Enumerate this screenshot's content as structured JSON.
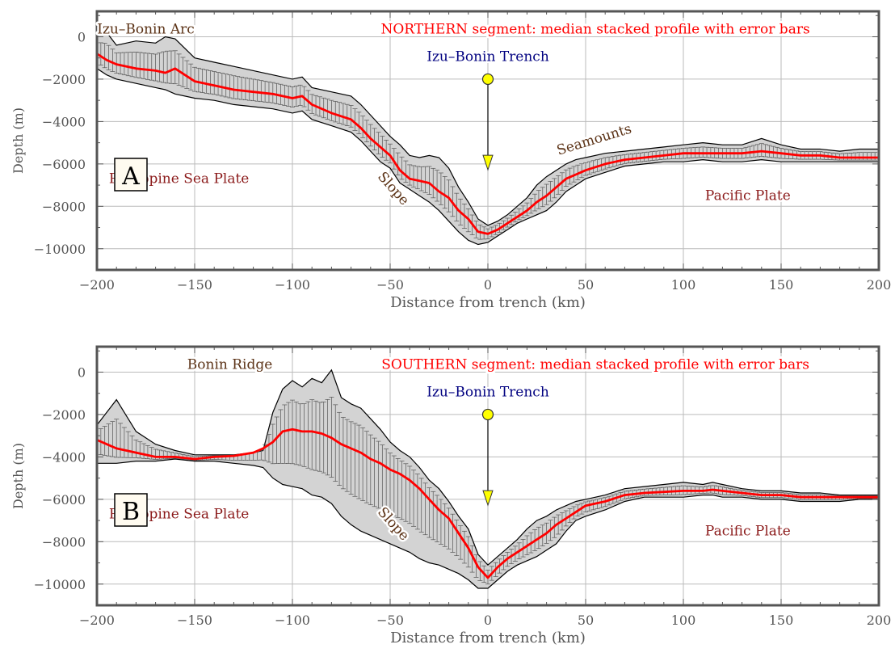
{
  "chart_data": [
    {
      "type": "line",
      "panel_label": "A",
      "title": "NORTHERN segment: median stacked profile with error bars",
      "xlabel": "Distance from trench (km)",
      "ylabel": "Depth (m)",
      "xlim": [
        -200,
        200
      ],
      "ylim": [
        -11000,
        1200
      ],
      "xticks": [
        -200,
        -150,
        -100,
        -50,
        0,
        50,
        100,
        150,
        200
      ],
      "yticks": [
        0,
        -2000,
        -4000,
        -6000,
        -8000,
        -10000
      ],
      "tick_labels_x": [
        "−200",
        "−150",
        "−100",
        "−50",
        "0",
        "50",
        "100",
        "150",
        "200"
      ],
      "tick_labels_y": [
        "0",
        "−2000",
        "−4000",
        "−6000",
        "−8000",
        "−10000"
      ],
      "grid": true,
      "series": [
        {
          "name": "median",
          "color": "#ff0000",
          "x": [
            -200,
            -195,
            -190,
            -180,
            -170,
            -165,
            -160,
            -150,
            -140,
            -130,
            -120,
            -110,
            -100,
            -95,
            -90,
            -80,
            -70,
            -65,
            -60,
            -55,
            -50,
            -45,
            -40,
            -35,
            -30,
            -25,
            -20,
            -15,
            -10,
            -5,
            0,
            5,
            10,
            15,
            20,
            25,
            30,
            35,
            40,
            45,
            50,
            60,
            70,
            80,
            90,
            100,
            110,
            120,
            130,
            140,
            150,
            160,
            170,
            180,
            190,
            200
          ],
          "y": [
            -800,
            -1100,
            -1300,
            -1500,
            -1600,
            -1700,
            -1500,
            -2100,
            -2300,
            -2500,
            -2600,
            -2700,
            -2900,
            -2800,
            -3200,
            -3600,
            -3900,
            -4300,
            -4800,
            -5200,
            -5600,
            -6300,
            -6700,
            -6800,
            -6900,
            -7300,
            -7600,
            -8200,
            -8600,
            -9200,
            -9300,
            -9100,
            -8800,
            -8500,
            -8200,
            -7800,
            -7500,
            -7100,
            -6700,
            -6500,
            -6300,
            -6000,
            -5800,
            -5700,
            -5600,
            -5500,
            -5500,
            -5500,
            -5500,
            -5400,
            -5500,
            -5600,
            -5600,
            -5700,
            -5700,
            -5700
          ]
        }
      ],
      "envelope": {
        "color": "#d3d3d3",
        "x": [
          -200,
          -195,
          -190,
          -180,
          -170,
          -165,
          -160,
          -150,
          -140,
          -130,
          -120,
          -110,
          -100,
          -95,
          -90,
          -80,
          -70,
          -65,
          -60,
          -55,
          -50,
          -45,
          -40,
          -35,
          -30,
          -25,
          -20,
          -15,
          -10,
          -5,
          0,
          5,
          10,
          15,
          20,
          25,
          30,
          35,
          40,
          45,
          50,
          60,
          70,
          80,
          90,
          100,
          110,
          120,
          130,
          140,
          150,
          160,
          170,
          180,
          190,
          200
        ],
        "upper": [
          100,
          200,
          -400,
          -200,
          -300,
          0,
          -100,
          -1000,
          -1200,
          -1400,
          -1600,
          -1800,
          -2000,
          -1900,
          -2400,
          -2600,
          -2800,
          -3200,
          -3700,
          -4200,
          -4700,
          -5100,
          -5600,
          -5700,
          -5600,
          -5700,
          -6200,
          -7100,
          -7800,
          -8600,
          -8900,
          -8700,
          -8400,
          -8000,
          -7600,
          -7000,
          -6600,
          -6300,
          -6000,
          -5800,
          -5700,
          -5500,
          -5400,
          -5300,
          -5200,
          -5100,
          -5000,
          -5100,
          -5100,
          -4800,
          -5100,
          -5300,
          -5300,
          -5400,
          -5300,
          -5300
        ],
        "lower": [
          -1500,
          -1800,
          -2000,
          -2200,
          -2400,
          -2500,
          -2700,
          -2900,
          -3000,
          -3200,
          -3300,
          -3400,
          -3600,
          -3500,
          -3900,
          -4200,
          -4500,
          -4900,
          -5400,
          -5900,
          -6200,
          -6900,
          -7200,
          -7500,
          -7800,
          -8200,
          -8700,
          -9200,
          -9600,
          -9800,
          -9700,
          -9400,
          -9100,
          -8800,
          -8600,
          -8400,
          -8200,
          -7800,
          -7300,
          -7000,
          -6700,
          -6400,
          -6100,
          -6000,
          -5900,
          -5900,
          -5800,
          -5900,
          -5900,
          -5800,
          -5900,
          -5900,
          -5900,
          -5900,
          -5900,
          -5900
        ]
      },
      "annotations": [
        {
          "text": "Izu–Bonin Arc",
          "x": -175,
          "y": 150,
          "color": "#5c3317"
        },
        {
          "text": "Izu–Bonin Trench",
          "x": 0,
          "y": -1150,
          "color": "#000080"
        },
        {
          "text": "Philippine Sea Plate",
          "x": -158,
          "y": -6900,
          "color": "#8b1a1a"
        },
        {
          "text": "Slope",
          "x": -50,
          "y": -7300,
          "color": "#5c3317",
          "rotate": 48
        },
        {
          "text": "Seamounts",
          "x": 55,
          "y": -5050,
          "color": "#5c3317",
          "rotate": -17
        },
        {
          "text": "Pacific Plate",
          "x": 133,
          "y": -7700,
          "color": "#8b1a1a"
        }
      ],
      "marker": {
        "x": 0,
        "y_top": -2000,
        "y_bottom": -6200,
        "top_color": "#ffff00",
        "arrow_color": "#ffff00"
      }
    },
    {
      "type": "line",
      "panel_label": "B",
      "title": "SOUTHERN segment: median stacked profile with error bars",
      "xlabel": "Distance from trench (km)",
      "ylabel": "Depth (m)",
      "xlim": [
        -200,
        200
      ],
      "ylim": [
        -11000,
        1200
      ],
      "xticks": [
        -200,
        -150,
        -100,
        -50,
        0,
        50,
        100,
        150,
        200
      ],
      "yticks": [
        0,
        -2000,
        -4000,
        -6000,
        -8000,
        -10000
      ],
      "tick_labels_x": [
        "−200",
        "−150",
        "−100",
        "−50",
        "0",
        "50",
        "100",
        "150",
        "200"
      ],
      "tick_labels_y": [
        "0",
        "−2000",
        "−4000",
        "−6000",
        "−8000",
        "−10000"
      ],
      "grid": true,
      "series": [
        {
          "name": "median",
          "color": "#ff0000",
          "x": [
            -200,
            -190,
            -180,
            -170,
            -160,
            -150,
            -140,
            -130,
            -120,
            -115,
            -110,
            -105,
            -100,
            -95,
            -90,
            -85,
            -80,
            -75,
            -70,
            -65,
            -60,
            -55,
            -50,
            -45,
            -40,
            -35,
            -30,
            -25,
            -20,
            -15,
            -10,
            -5,
            0,
            5,
            10,
            15,
            20,
            25,
            30,
            35,
            40,
            45,
            50,
            60,
            70,
            80,
            90,
            100,
            110,
            115,
            120,
            130,
            140,
            150,
            160,
            170,
            180,
            190,
            200
          ],
          "y": [
            -3200,
            -3600,
            -3800,
            -4000,
            -4000,
            -4100,
            -4000,
            -3950,
            -3800,
            -3600,
            -3300,
            -2800,
            -2700,
            -2800,
            -2800,
            -2900,
            -3100,
            -3400,
            -3600,
            -3800,
            -4100,
            -4300,
            -4600,
            -4800,
            -5100,
            -5500,
            -6000,
            -6500,
            -6900,
            -7600,
            -8300,
            -9200,
            -9700,
            -9200,
            -8800,
            -8500,
            -8200,
            -7900,
            -7600,
            -7200,
            -6900,
            -6600,
            -6300,
            -6100,
            -5800,
            -5700,
            -5650,
            -5600,
            -5600,
            -5550,
            -5600,
            -5700,
            -5800,
            -5800,
            -5900,
            -5900,
            -5900,
            -5900,
            -5900
          ]
        }
      ],
      "envelope": {
        "color": "#d3d3d3",
        "x": [
          -200,
          -190,
          -180,
          -170,
          -160,
          -150,
          -140,
          -130,
          -120,
          -115,
          -110,
          -105,
          -100,
          -95,
          -90,
          -85,
          -80,
          -75,
          -70,
          -65,
          -60,
          -55,
          -50,
          -45,
          -40,
          -35,
          -30,
          -25,
          -20,
          -15,
          -10,
          -5,
          0,
          5,
          10,
          15,
          20,
          25,
          30,
          35,
          40,
          45,
          50,
          60,
          70,
          80,
          90,
          100,
          110,
          115,
          120,
          130,
          140,
          150,
          160,
          170,
          180,
          190,
          200
        ],
        "upper": [
          -2500,
          -1300,
          -2800,
          -3400,
          -3700,
          -3900,
          -3900,
          -3900,
          -3800,
          -3700,
          -1900,
          -800,
          -400,
          -700,
          -300,
          -500,
          100,
          -1200,
          -1500,
          -1700,
          -2200,
          -2700,
          -3300,
          -3700,
          -4000,
          -4500,
          -5100,
          -5500,
          -6100,
          -6800,
          -7400,
          -8600,
          -9100,
          -8700,
          -8300,
          -7900,
          -7400,
          -7000,
          -6800,
          -6500,
          -6300,
          -6100,
          -6000,
          -5800,
          -5500,
          -5400,
          -5300,
          -5200,
          -5300,
          -5200,
          -5300,
          -5500,
          -5600,
          -5600,
          -5700,
          -5700,
          -5800,
          -5800,
          -5800
        ],
        "lower": [
          -4300,
          -4300,
          -4200,
          -4200,
          -4100,
          -4200,
          -4200,
          -4300,
          -4400,
          -4500,
          -5000,
          -5300,
          -5400,
          -5500,
          -5800,
          -5900,
          -6200,
          -6800,
          -7200,
          -7500,
          -7700,
          -7900,
          -8100,
          -8300,
          -8500,
          -8800,
          -9000,
          -9100,
          -9300,
          -9500,
          -9800,
          -10200,
          -10200,
          -9800,
          -9400,
          -9100,
          -8900,
          -8700,
          -8400,
          -8100,
          -7500,
          -7000,
          -6800,
          -6500,
          -6100,
          -5900,
          -5900,
          -5900,
          -5800,
          -5800,
          -5900,
          -5900,
          -6000,
          -6000,
          -6100,
          -6100,
          -6100,
          -6000,
          -6000
        ]
      },
      "annotations": [
        {
          "text": "Bonin Ridge",
          "x": -132,
          "y": 150,
          "color": "#5c3317"
        },
        {
          "text": "Izu–Bonin Trench",
          "x": 0,
          "y": -1150,
          "color": "#000080"
        },
        {
          "text": "Philippine Sea Plate",
          "x": -158,
          "y": -6900,
          "color": "#8b1a1a"
        },
        {
          "text": "Slope",
          "x": -50,
          "y": -7300,
          "color": "#5c3317",
          "rotate": 48
        },
        {
          "text": "Pacific Plate",
          "x": 133,
          "y": -7700,
          "color": "#8b1a1a"
        }
      ],
      "marker": {
        "x": 0,
        "y_top": -2000,
        "y_bottom": -6200,
        "top_color": "#ffff00",
        "arrow_color": "#ffff00"
      }
    }
  ],
  "colors": {
    "frame": "#555555",
    "grid": "#bbbbbb",
    "title": "#ff0000",
    "envelope_stroke": "#000000",
    "errorbar": "#555555",
    "median": "#ff0000"
  }
}
